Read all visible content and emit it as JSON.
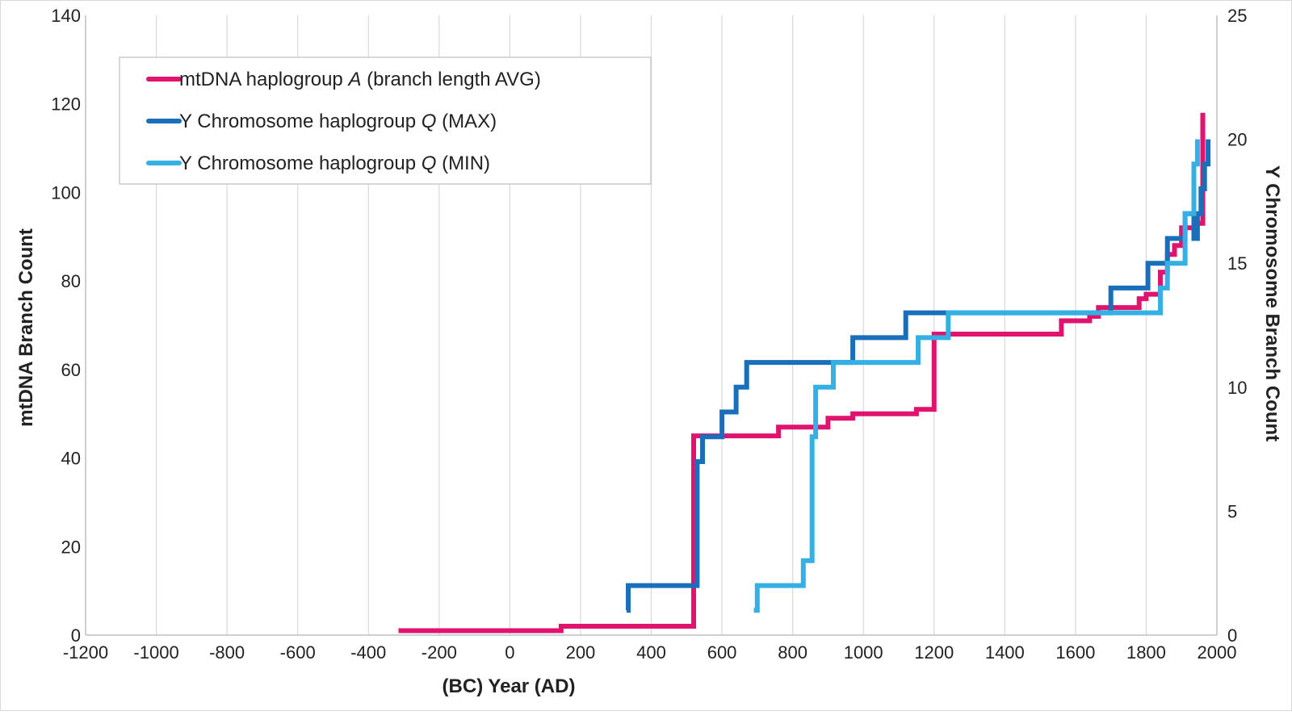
{
  "chart_data": {
    "type": "line",
    "title": "",
    "xlabel": "(BC) Year (AD)",
    "ylabel": "mtDNA Branch Count",
    "y2label": "Y Chromosome Branch Count",
    "xlim": [
      -1200,
      2000
    ],
    "ylim": [
      0,
      140
    ],
    "y2lim": [
      0,
      25
    ],
    "x_ticks": [
      -1200,
      -1000,
      -800,
      -600,
      -400,
      -200,
      0,
      200,
      400,
      600,
      800,
      1000,
      1200,
      1400,
      1600,
      1800,
      2000
    ],
    "y_ticks": [
      0,
      20,
      40,
      60,
      80,
      100,
      120,
      140
    ],
    "y2_ticks": [
      0,
      5,
      10,
      15,
      20,
      25
    ],
    "grid": "vertical",
    "legend_position": "top-left",
    "series": [
      {
        "name": "mtDNA haplogroup A (branch length AVG)",
        "name_parts": [
          "mtDNA haplogroup ",
          "A",
          " (branch length AVG)"
        ],
        "axis": "left",
        "color": "#e0146e",
        "points": [
          [
            -315,
            1
          ],
          [
            145,
            1
          ],
          [
            145,
            2
          ],
          [
            520,
            2
          ],
          [
            520,
            45
          ],
          [
            760,
            45
          ],
          [
            760,
            47
          ],
          [
            900,
            47
          ],
          [
            900,
            49
          ],
          [
            970,
            49
          ],
          [
            970,
            50
          ],
          [
            1150,
            50
          ],
          [
            1150,
            51
          ],
          [
            1200,
            51
          ],
          [
            1200,
            68
          ],
          [
            1560,
            68
          ],
          [
            1560,
            71
          ],
          [
            1640,
            71
          ],
          [
            1640,
            72
          ],
          [
            1665,
            72
          ],
          [
            1665,
            74
          ],
          [
            1780,
            74
          ],
          [
            1780,
            76
          ],
          [
            1800,
            76
          ],
          [
            1800,
            77
          ],
          [
            1840,
            77
          ],
          [
            1840,
            82
          ],
          [
            1860,
            82
          ],
          [
            1860,
            86
          ],
          [
            1880,
            86
          ],
          [
            1880,
            88
          ],
          [
            1900,
            88
          ],
          [
            1900,
            92
          ],
          [
            1940,
            92
          ],
          [
            1940,
            93
          ],
          [
            1960,
            93
          ],
          [
            1960,
            118
          ]
        ]
      },
      {
        "name": "Y Chromosome haplogroup Q (MAX)",
        "name_parts": [
          "Y Chromosome haplogroup ",
          "Q",
          " (MAX)"
        ],
        "axis": "right",
        "color": "#1a6fba",
        "points": [
          [
            330,
            1
          ],
          [
            335,
            1
          ],
          [
            335,
            2
          ],
          [
            530,
            2
          ],
          [
            530,
            7
          ],
          [
            545,
            7
          ],
          [
            545,
            8
          ],
          [
            600,
            8
          ],
          [
            600,
            9
          ],
          [
            640,
            9
          ],
          [
            640,
            10
          ],
          [
            670,
            10
          ],
          [
            670,
            11
          ],
          [
            970,
            11
          ],
          [
            970,
            12
          ],
          [
            1120,
            12
          ],
          [
            1120,
            13
          ],
          [
            1700,
            13
          ],
          [
            1700,
            14
          ],
          [
            1805,
            14
          ],
          [
            1805,
            15
          ],
          [
            1860,
            15
          ],
          [
            1860,
            16
          ],
          [
            1910,
            16
          ],
          [
            1910,
            17
          ],
          [
            1935,
            17
          ],
          [
            1935,
            16
          ],
          [
            1945,
            16
          ],
          [
            1945,
            17
          ],
          [
            1955,
            17
          ],
          [
            1955,
            18
          ],
          [
            1965,
            18
          ],
          [
            1965,
            19
          ],
          [
            1975,
            19
          ],
          [
            1975,
            20
          ]
        ]
      },
      {
        "name": "Y Chromosome haplogroup Q (MIN)",
        "name_parts": [
          "Y Chromosome haplogroup ",
          "Q",
          " (MIN)"
        ],
        "axis": "right",
        "color": "#35b0e5",
        "points": [
          [
            690,
            1
          ],
          [
            700,
            1
          ],
          [
            700,
            2
          ],
          [
            830,
            2
          ],
          [
            830,
            3
          ],
          [
            855,
            3
          ],
          [
            855,
            8
          ],
          [
            865,
            8
          ],
          [
            865,
            10
          ],
          [
            915,
            10
          ],
          [
            915,
            11
          ],
          [
            1155,
            11
          ],
          [
            1155,
            12
          ],
          [
            1240,
            12
          ],
          [
            1240,
            13
          ],
          [
            1840,
            13
          ],
          [
            1840,
            14
          ],
          [
            1860,
            14
          ],
          [
            1860,
            15
          ],
          [
            1910,
            15
          ],
          [
            1910,
            17
          ],
          [
            1935,
            17
          ],
          [
            1935,
            19
          ],
          [
            1945,
            19
          ],
          [
            1945,
            20
          ]
        ]
      }
    ]
  }
}
